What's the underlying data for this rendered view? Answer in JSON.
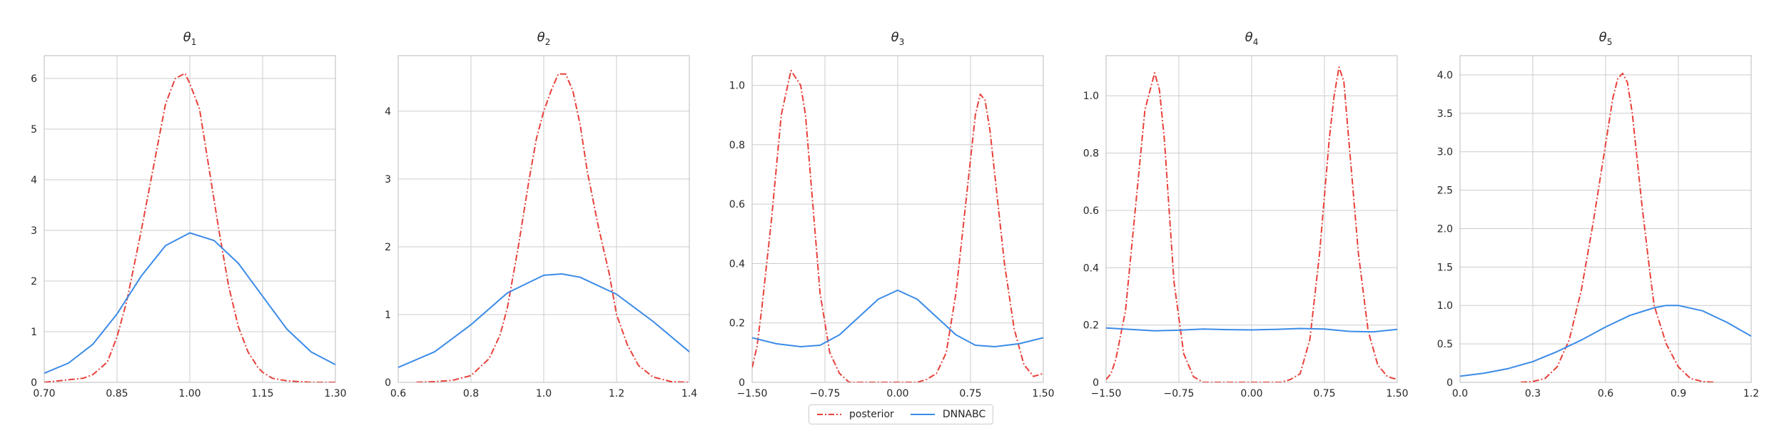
{
  "colors": {
    "posterior": "#e8413a",
    "dnnabc": "#3b8be8",
    "grid": "#cccccc",
    "axis": "#bbbbbb"
  },
  "legend": {
    "placement": "bottom-center",
    "items": [
      {
        "key": "posterior",
        "label": "posterior",
        "style": "dashdot"
      },
      {
        "key": "dnnabc",
        "label": "DNNABC",
        "style": "solid"
      }
    ]
  },
  "chart_data": [
    {
      "type": "line",
      "title_base": "θ",
      "title_sub": "1",
      "xlim": [
        0.7,
        1.3
      ],
      "ylim": [
        0,
        6.45
      ],
      "xticks": [
        0.7,
        0.85,
        1.0,
        1.15,
        1.3
      ],
      "xtick_labels": [
        "0.70",
        "0.85",
        "1.00",
        "1.15",
        "1.30"
      ],
      "yticks": [
        0,
        1,
        2,
        3,
        4,
        5,
        6
      ],
      "ytick_labels": [
        "0",
        "1",
        "2",
        "3",
        "4",
        "5",
        "6"
      ],
      "grid": true,
      "series": [
        {
          "key": "posterior",
          "x": [
            0.7,
            0.75,
            0.78,
            0.8,
            0.83,
            0.85,
            0.87,
            0.9,
            0.93,
            0.95,
            0.97,
            0.99,
            1.0,
            1.02,
            1.04,
            1.06,
            1.08,
            1.1,
            1.12,
            1.14,
            1.15,
            1.17,
            1.2,
            1.25,
            1.3
          ],
          "y": [
            0.0,
            0.05,
            0.08,
            0.15,
            0.4,
            0.9,
            1.6,
            3.0,
            4.5,
            5.5,
            6.0,
            6.1,
            5.9,
            5.4,
            4.2,
            3.0,
            1.9,
            1.1,
            0.6,
            0.3,
            0.2,
            0.08,
            0.03,
            0.0,
            0.0
          ]
        },
        {
          "key": "dnnabc",
          "x": [
            0.7,
            0.75,
            0.8,
            0.85,
            0.9,
            0.95,
            1.0,
            1.05,
            1.1,
            1.15,
            1.2,
            1.25,
            1.3
          ],
          "y": [
            0.18,
            0.38,
            0.75,
            1.35,
            2.1,
            2.7,
            2.95,
            2.8,
            2.35,
            1.7,
            1.05,
            0.6,
            0.35
          ]
        }
      ]
    },
    {
      "type": "line",
      "title_base": "θ",
      "title_sub": "2",
      "xlim": [
        0.6,
        1.4
      ],
      "ylim": [
        0,
        4.82
      ],
      "xticks": [
        0.6,
        0.8,
        1.0,
        1.2,
        1.4
      ],
      "xtick_labels": [
        "0.6",
        "0.8",
        "1.0",
        "1.2",
        "1.4"
      ],
      "yticks": [
        0,
        1,
        2,
        3,
        4
      ],
      "ytick_labels": [
        "0",
        "1",
        "2",
        "3",
        "4"
      ],
      "grid": true,
      "series": [
        {
          "key": "posterior",
          "x": [
            0.65,
            0.7,
            0.75,
            0.8,
            0.85,
            0.88,
            0.9,
            0.93,
            0.96,
            0.98,
            1.0,
            1.02,
            1.04,
            1.06,
            1.08,
            1.1,
            1.12,
            1.15,
            1.18,
            1.2,
            1.23,
            1.26,
            1.3,
            1.35,
            1.4
          ],
          "y": [
            0.0,
            0.01,
            0.03,
            0.1,
            0.35,
            0.7,
            1.1,
            2.0,
            3.0,
            3.6,
            4.0,
            4.3,
            4.55,
            4.55,
            4.3,
            3.8,
            3.1,
            2.3,
            1.6,
            1.0,
            0.55,
            0.25,
            0.08,
            0.01,
            0.0
          ]
        },
        {
          "key": "dnnabc",
          "x": [
            0.6,
            0.7,
            0.8,
            0.9,
            1.0,
            1.05,
            1.1,
            1.2,
            1.3,
            1.4
          ],
          "y": [
            0.22,
            0.45,
            0.85,
            1.32,
            1.58,
            1.6,
            1.55,
            1.3,
            0.9,
            0.45
          ]
        }
      ]
    },
    {
      "type": "line",
      "title_base": "θ",
      "title_sub": "3",
      "xlim": [
        -1.5,
        1.5
      ],
      "ylim": [
        0,
        1.1
      ],
      "xticks": [
        -1.5,
        -0.75,
        0.0,
        0.75,
        1.5
      ],
      "xtick_labels": [
        "−1.50",
        "−0.75",
        "0.00",
        "0.75",
        "1.50"
      ],
      "yticks": [
        0,
        0.2,
        0.4,
        0.6,
        0.8,
        1.0
      ],
      "ytick_labels": [
        "0",
        "0.2",
        "0.4",
        "0.6",
        "0.8",
        "1.0"
      ],
      "grid": true,
      "series": [
        {
          "key": "posterior",
          "x": [
            -1.5,
            -1.45,
            -1.4,
            -1.3,
            -1.2,
            -1.1,
            -1.0,
            -0.95,
            -0.9,
            -0.85,
            -0.8,
            -0.7,
            -0.6,
            -0.5,
            -0.4,
            -0.3,
            -0.2,
            0.0,
            0.2,
            0.3,
            0.4,
            0.5,
            0.6,
            0.7,
            0.8,
            0.85,
            0.9,
            0.95,
            1.0,
            1.1,
            1.2,
            1.3,
            1.4,
            1.5
          ],
          "y": [
            0.05,
            0.12,
            0.25,
            0.55,
            0.9,
            1.05,
            1.0,
            0.9,
            0.7,
            0.5,
            0.3,
            0.1,
            0.03,
            0.0,
            0.0,
            0.0,
            0.0,
            0.0,
            0.0,
            0.01,
            0.03,
            0.1,
            0.3,
            0.6,
            0.9,
            0.97,
            0.95,
            0.85,
            0.7,
            0.4,
            0.18,
            0.06,
            0.02,
            0.03
          ]
        },
        {
          "key": "dnnabc",
          "x": [
            -1.5,
            -1.25,
            -1.0,
            -0.8,
            -0.6,
            -0.4,
            -0.2,
            0.0,
            0.2,
            0.4,
            0.6,
            0.8,
            1.0,
            1.25,
            1.5
          ],
          "y": [
            0.15,
            0.13,
            0.12,
            0.125,
            0.16,
            0.22,
            0.28,
            0.31,
            0.28,
            0.22,
            0.16,
            0.125,
            0.12,
            0.13,
            0.15
          ]
        }
      ]
    },
    {
      "type": "line",
      "title_base": "θ",
      "title_sub": "4",
      "xlim": [
        -1.5,
        1.5
      ],
      "ylim": [
        0,
        1.14
      ],
      "xticks": [
        -1.5,
        -0.75,
        0.0,
        0.75,
        1.5
      ],
      "xtick_labels": [
        "−1.50",
        "−0.75",
        "0.00",
        "0.75",
        "1.50"
      ],
      "yticks": [
        0,
        0.2,
        0.4,
        0.6,
        0.8,
        1.0
      ],
      "ytick_labels": [
        "0",
        "0.2",
        "0.4",
        "0.6",
        "0.8",
        "1.0"
      ],
      "grid": true,
      "series": [
        {
          "key": "posterior",
          "x": [
            -1.5,
            -1.45,
            -1.4,
            -1.3,
            -1.2,
            -1.1,
            -1.0,
            -0.95,
            -0.9,
            -0.85,
            -0.8,
            -0.7,
            -0.6,
            -0.5,
            -0.4,
            -0.3,
            0.0,
            0.3,
            0.4,
            0.5,
            0.6,
            0.7,
            0.8,
            0.85,
            0.9,
            0.95,
            1.0,
            1.1,
            1.2,
            1.3,
            1.4,
            1.5
          ],
          "y": [
            0.01,
            0.03,
            0.08,
            0.25,
            0.6,
            0.95,
            1.08,
            1.02,
            0.85,
            0.6,
            0.35,
            0.1,
            0.02,
            0.0,
            0.0,
            0.0,
            0.0,
            0.0,
            0.01,
            0.03,
            0.15,
            0.45,
            0.85,
            1.0,
            1.1,
            1.05,
            0.85,
            0.45,
            0.18,
            0.06,
            0.02,
            0.01
          ]
        },
        {
          "key": "dnnabc",
          "x": [
            -1.5,
            -1.25,
            -1.0,
            -0.75,
            -0.5,
            -0.25,
            0.0,
            0.25,
            0.5,
            0.75,
            1.0,
            1.25,
            1.5
          ],
          "y": [
            0.19,
            0.185,
            0.18,
            0.182,
            0.186,
            0.184,
            0.183,
            0.185,
            0.188,
            0.186,
            0.178,
            0.176,
            0.185
          ]
        }
      ]
    },
    {
      "type": "line",
      "title_base": "θ",
      "title_sub": "5",
      "xlim": [
        0.0,
        1.2
      ],
      "ylim": [
        0,
        4.25
      ],
      "xticks": [
        0.0,
        0.3,
        0.6,
        0.9,
        1.2
      ],
      "xtick_labels": [
        "0.0",
        "0.3",
        "0.6",
        "0.9",
        "1.2"
      ],
      "yticks": [
        0,
        0.5,
        1.0,
        1.5,
        2.0,
        2.5,
        3.0,
        3.5,
        4.0
      ],
      "ytick_labels": [
        "0",
        "0.5",
        "1.0",
        "1.5",
        "2.0",
        "2.5",
        "3.0",
        "3.5",
        "4.0"
      ],
      "grid": true,
      "series": [
        {
          "key": "posterior",
          "x": [
            0.25,
            0.3,
            0.35,
            0.4,
            0.45,
            0.5,
            0.55,
            0.6,
            0.63,
            0.65,
            0.67,
            0.69,
            0.71,
            0.73,
            0.75,
            0.78,
            0.8,
            0.85,
            0.9,
            0.95,
            1.0,
            1.05
          ],
          "y": [
            0.0,
            0.01,
            0.05,
            0.2,
            0.55,
            1.2,
            2.1,
            3.1,
            3.7,
            3.95,
            4.02,
            3.9,
            3.5,
            2.9,
            2.3,
            1.5,
            1.0,
            0.5,
            0.2,
            0.05,
            0.01,
            0.0
          ]
        },
        {
          "key": "dnnabc",
          "x": [
            0.0,
            0.1,
            0.2,
            0.3,
            0.4,
            0.5,
            0.6,
            0.7,
            0.8,
            0.85,
            0.9,
            1.0,
            1.1,
            1.2
          ],
          "y": [
            0.08,
            0.12,
            0.18,
            0.27,
            0.4,
            0.55,
            0.72,
            0.87,
            0.97,
            1.0,
            1.0,
            0.93,
            0.78,
            0.6
          ]
        }
      ]
    }
  ]
}
